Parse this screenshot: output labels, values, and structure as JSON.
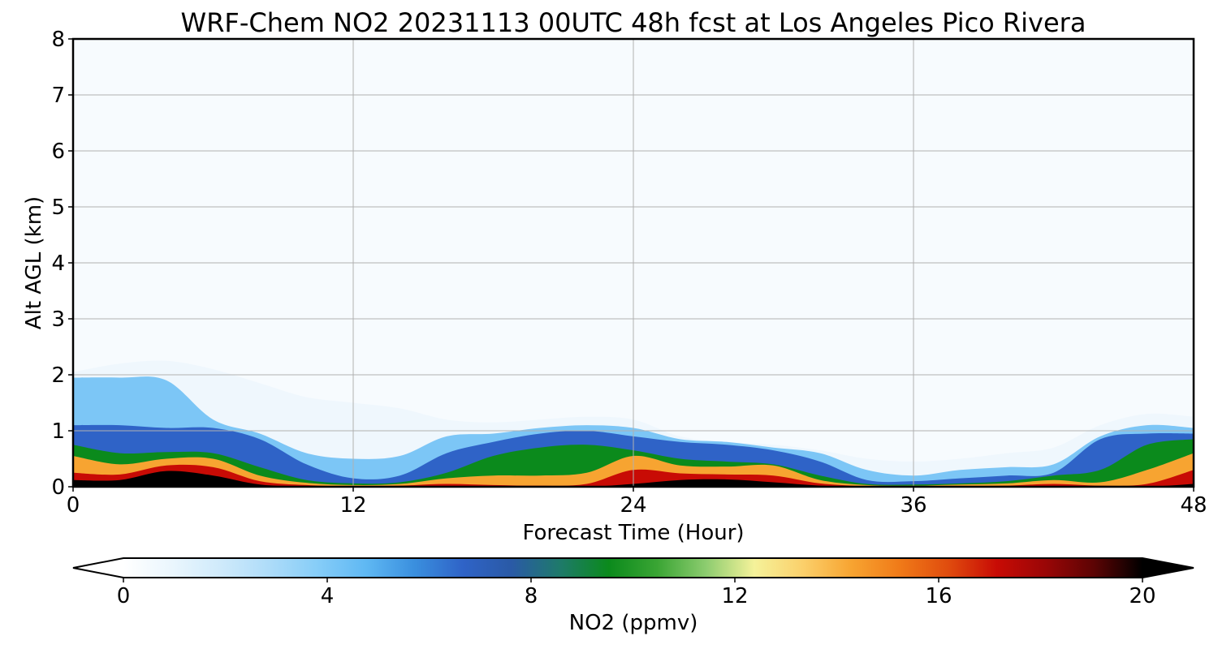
{
  "chart_data": {
    "type": "heatmap",
    "title": "WRF-Chem NO2  20231113 00UTC 48h fcst at Los Angeles Pico Rivera",
    "xlabel": "Forecast Time (Hour)",
    "ylabel": "Alt AGL (km)",
    "xlim": [
      0,
      48
    ],
    "ylim": [
      0,
      8
    ],
    "xticks": [
      "0",
      "12",
      "24",
      "36",
      "48"
    ],
    "yticks": [
      "0",
      "1",
      "2",
      "3",
      "4",
      "5",
      "6",
      "7",
      "8"
    ],
    "grid": true,
    "x_hours": [
      0,
      2,
      4,
      6,
      8,
      10,
      12,
      14,
      16,
      18,
      20,
      22,
      24,
      26,
      28,
      30,
      32,
      34,
      36,
      38,
      40,
      42,
      44,
      46,
      48
    ],
    "contour_tops_km": {
      "trace_plume": [
        2.05,
        2.2,
        2.25,
        2.1,
        1.85,
        1.6,
        1.5,
        1.4,
        1.2,
        1.15,
        1.2,
        1.25,
        1.2,
        0.9,
        0.8,
        0.75,
        0.65,
        0.5,
        0.45,
        0.5,
        0.6,
        0.7,
        1.1,
        1.3,
        1.25
      ],
      "above_2ppmv": [
        1.95,
        1.95,
        1.9,
        1.2,
        0.95,
        0.6,
        0.5,
        0.55,
        0.9,
        0.95,
        1.05,
        1.1,
        1.05,
        0.85,
        0.8,
        0.7,
        0.6,
        0.3,
        0.2,
        0.3,
        0.35,
        0.4,
        0.9,
        1.1,
        1.05
      ],
      "above_5ppmv": [
        1.1,
        1.1,
        1.05,
        1.05,
        0.85,
        0.4,
        0.15,
        0.2,
        0.6,
        0.8,
        0.95,
        1.0,
        0.9,
        0.8,
        0.75,
        0.65,
        0.45,
        0.12,
        0.1,
        0.15,
        0.2,
        0.25,
        0.85,
        0.95,
        0.95
      ],
      "above_8ppmv": [
        0.75,
        0.6,
        0.62,
        0.6,
        0.35,
        0.12,
        0.06,
        0.08,
        0.25,
        0.55,
        0.7,
        0.75,
        0.65,
        0.5,
        0.45,
        0.4,
        0.2,
        0.05,
        0.04,
        0.06,
        0.1,
        0.2,
        0.3,
        0.75,
        0.85
      ],
      "above_10ppmv": [
        0.55,
        0.4,
        0.5,
        0.5,
        0.2,
        0.07,
        0.03,
        0.05,
        0.15,
        0.2,
        0.2,
        0.25,
        0.55,
        0.38,
        0.36,
        0.38,
        0.12,
        0.03,
        0.02,
        0.04,
        0.06,
        0.12,
        0.08,
        0.3,
        0.6
      ],
      "above_14ppmv": [
        0.25,
        0.22,
        0.38,
        0.35,
        0.1,
        0.03,
        0.01,
        0.02,
        0.05,
        0.03,
        0.02,
        0.05,
        0.3,
        0.24,
        0.22,
        0.2,
        0.06,
        0.01,
        0.0,
        0.01,
        0.02,
        0.05,
        0.02,
        0.05,
        0.3
      ],
      "above_18ppmv": [
        0.12,
        0.12,
        0.28,
        0.2,
        0.04,
        0.01,
        0.0,
        0.0,
        0.0,
        0.0,
        0.0,
        0.0,
        0.05,
        0.12,
        0.13,
        0.08,
        0.02,
        0.0,
        0.0,
        0.0,
        0.0,
        0.0,
        0.0,
        0.0,
        0.05
      ]
    },
    "colorbar": {
      "label": "NO2  (ppmv)",
      "min": 0,
      "max": 20,
      "ticks": [
        "0",
        "4",
        "8",
        "12",
        "16",
        "20"
      ],
      "extend": "both",
      "colors": [
        "#ffffff",
        "#eaf6fd",
        "#cfeafb",
        "#aedcf9",
        "#86cdf8",
        "#5fb8f3",
        "#3a8fde",
        "#2f63c7",
        "#2a5aa6",
        "#1e7a6a",
        "#0b8a1c",
        "#3aa534",
        "#8ccc6f",
        "#f5f29a",
        "#fbd06b",
        "#f7a431",
        "#f07a18",
        "#e04c0e",
        "#c80b05",
        "#9a0606",
        "#5c0404",
        "#000000"
      ]
    }
  }
}
